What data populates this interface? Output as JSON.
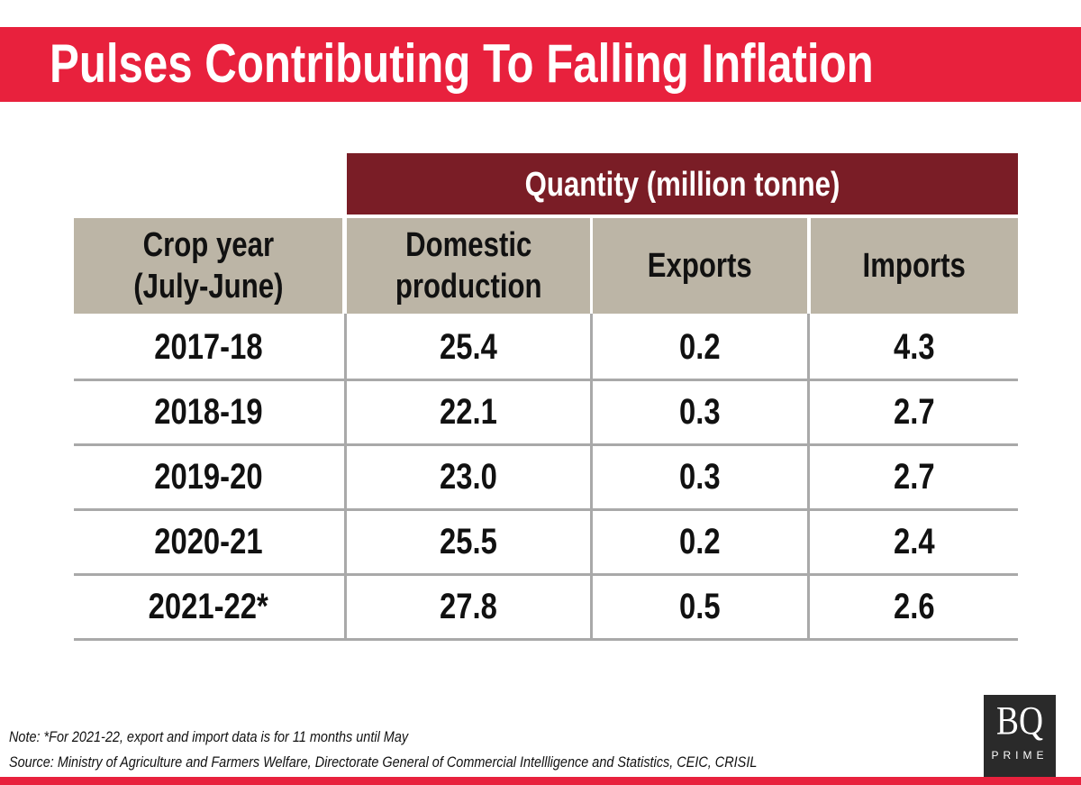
{
  "title": "Pulses Contributing To Falling Inflation",
  "group_header": "Quantity (million tonne)",
  "columns": [
    "Crop year (July-June)",
    "Domestic production",
    "Exports",
    "Imports"
  ],
  "column_lines": [
    [
      "Crop year",
      "(July-June)"
    ],
    [
      "Domestic",
      "production"
    ],
    [
      "Exports"
    ],
    [
      "Imports"
    ]
  ],
  "rows": [
    [
      "2017-18",
      "25.4",
      "0.2",
      "4.3"
    ],
    [
      "2018-19",
      "22.1",
      "0.3",
      "2.7"
    ],
    [
      "2019-20",
      "23.0",
      "0.3",
      "2.7"
    ],
    [
      "2020-21",
      "25.5",
      "0.2",
      "2.4"
    ],
    [
      "2021-22*",
      "27.8",
      "0.5",
      "2.6"
    ]
  ],
  "note": "Note: *For 2021-22, export and import data is for 11 months until May",
  "source": "Source: Ministry of Agriculture and Farmers Welfare, Directorate General of Commercial Intellligence and Statistics, CEIC, CRISIL",
  "logo": {
    "main": "BQ",
    "sub": "PRIME"
  },
  "colors": {
    "title_band": "#e8213d",
    "group_header": "#7a1d26",
    "column_header": "#bcb5a6"
  },
  "chart_data": {
    "type": "table",
    "title": "Pulses Contributing To Falling Inflation",
    "columns": [
      "Crop year (July-June)",
      "Domestic production",
      "Exports",
      "Imports"
    ],
    "rows": [
      [
        "2017-18",
        25.4,
        0.2,
        4.3
      ],
      [
        "2018-19",
        22.1,
        0.3,
        2.7
      ],
      [
        "2019-20",
        23.0,
        0.3,
        2.7
      ],
      [
        "2020-21",
        25.5,
        0.2,
        2.4
      ],
      [
        "2021-22*",
        27.8,
        0.5,
        2.6
      ]
    ]
  }
}
